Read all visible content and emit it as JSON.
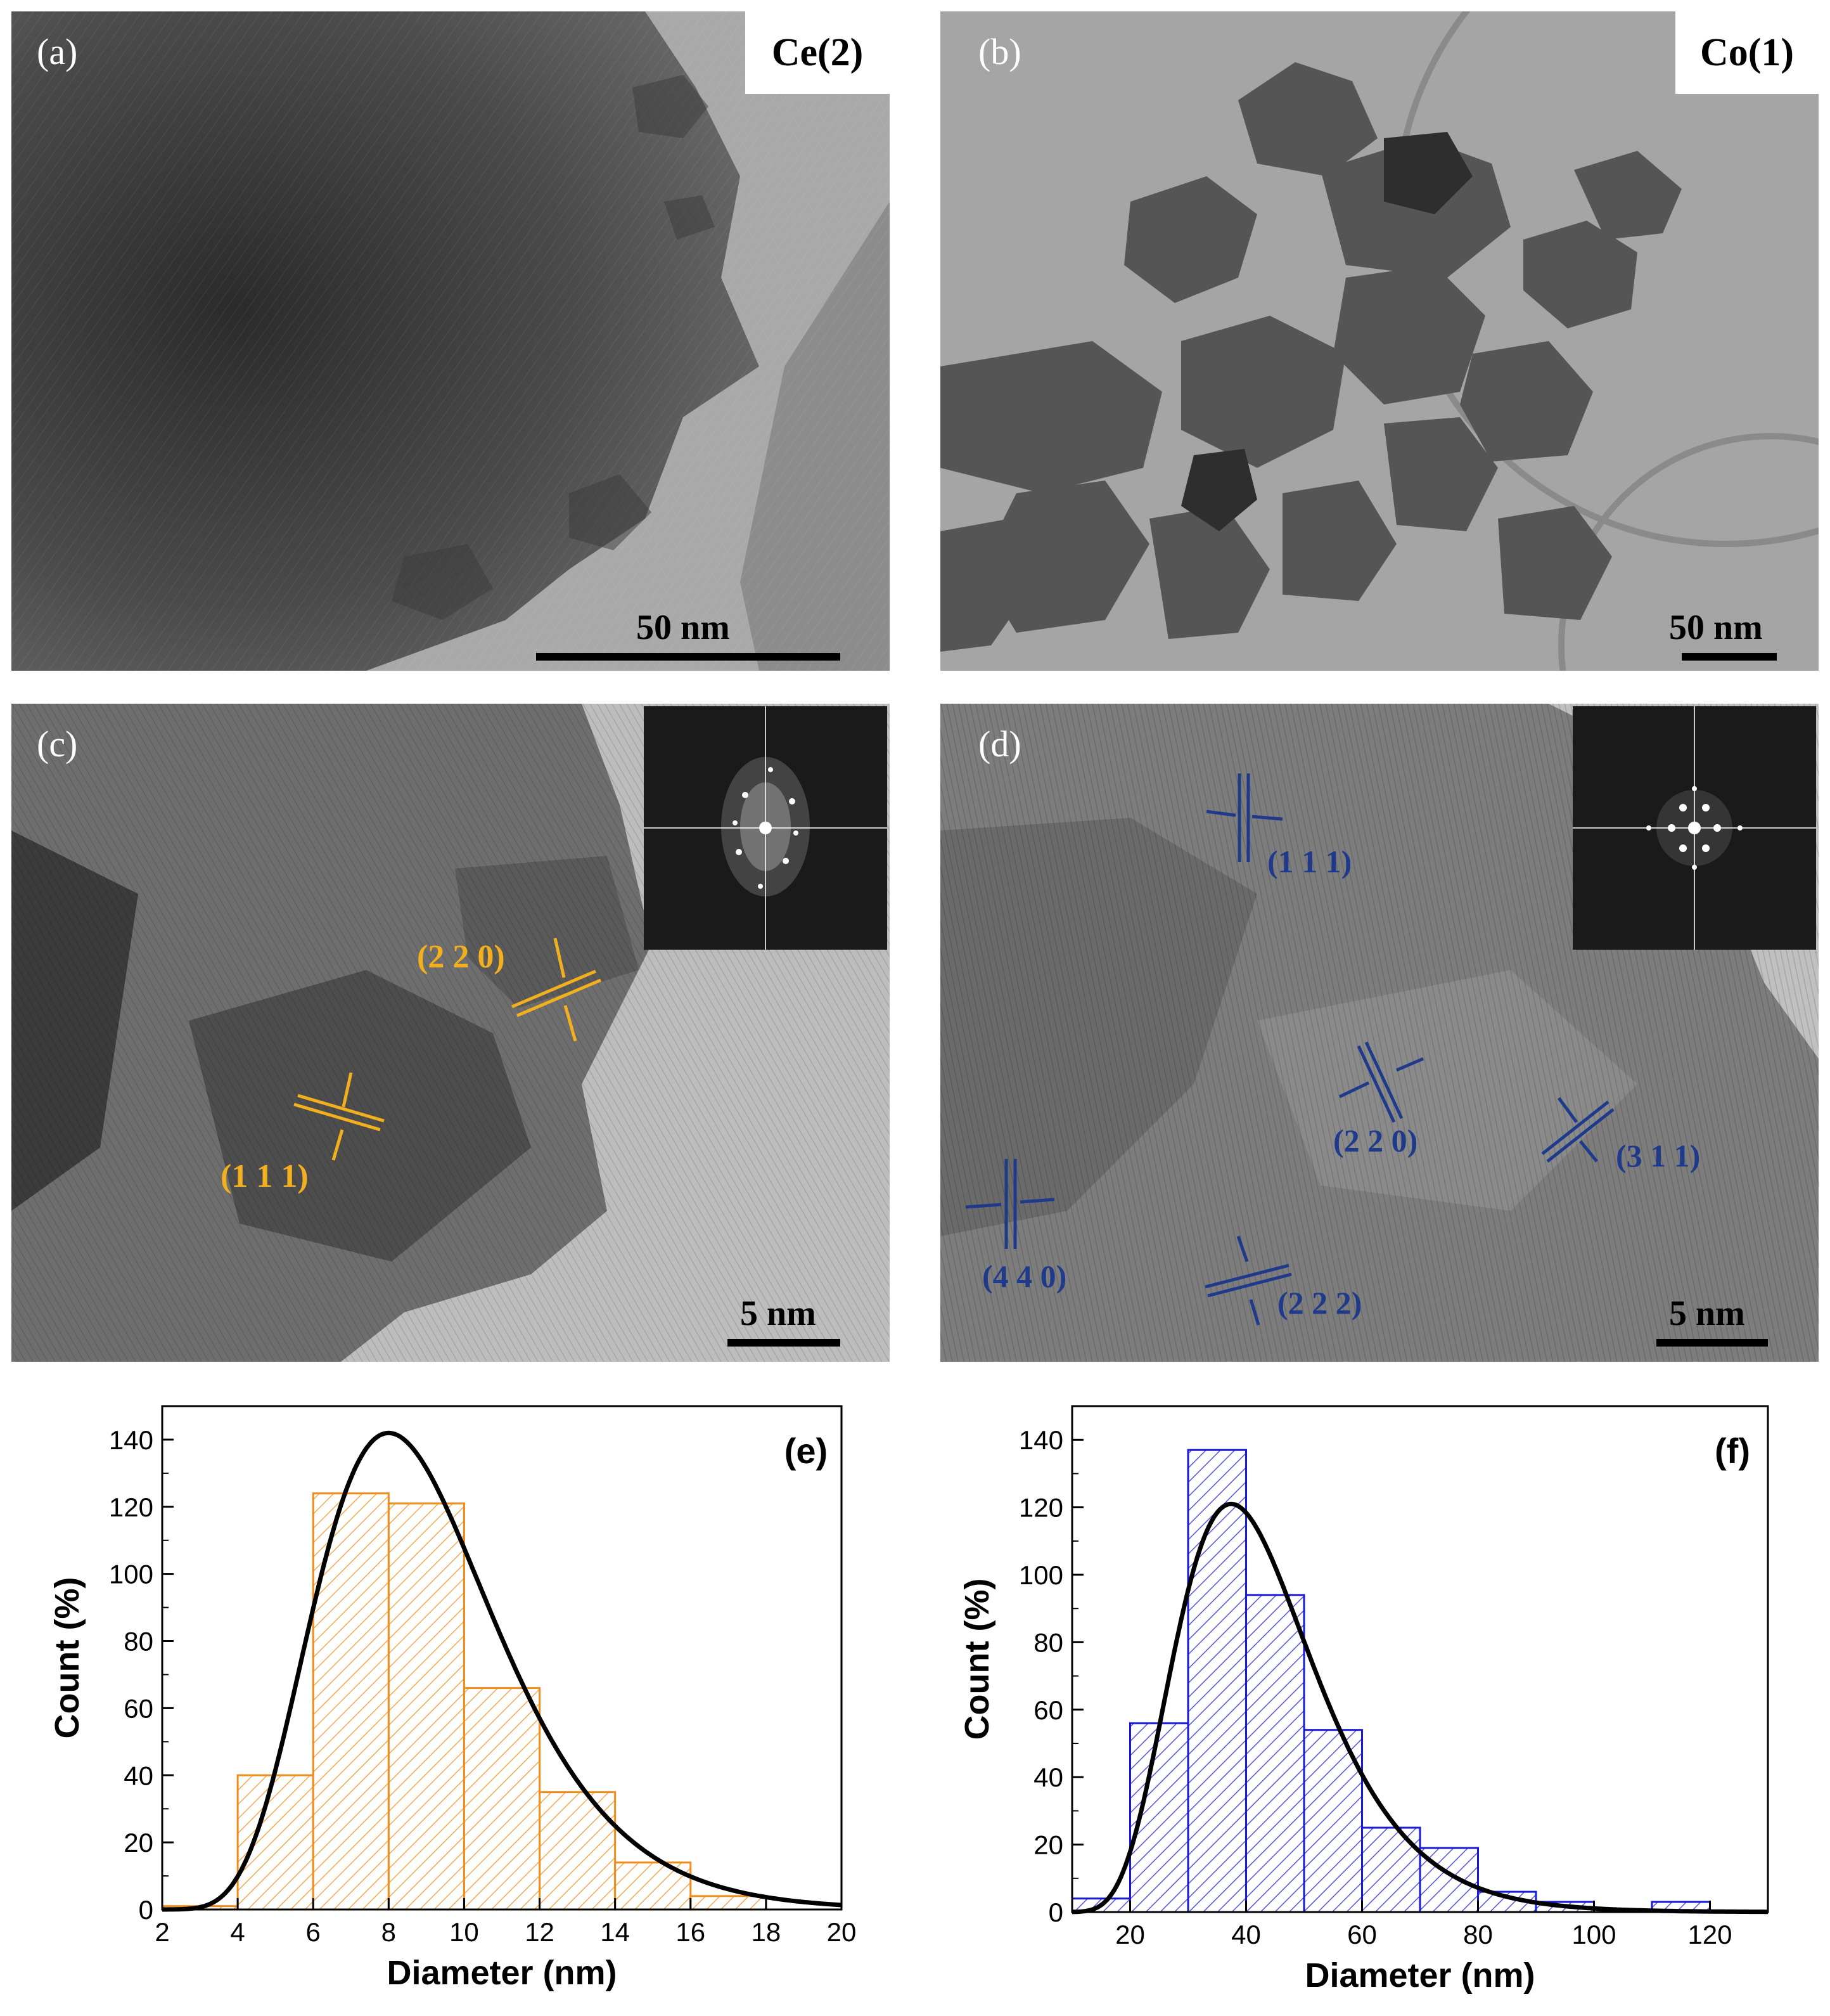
{
  "panels": {
    "a": {
      "label": "(a)",
      "sample": "Ce(2)",
      "scale": "50 nm"
    },
    "b": {
      "label": "(b)",
      "sample": "Co(1)",
      "scale": "50 nm"
    },
    "c": {
      "label": "(c)",
      "scale": "5 nm",
      "planes": [
        "(2 2 0)",
        "(1 1 1)"
      ],
      "plane_color": "#f2b01e"
    },
    "d": {
      "label": "(d)",
      "scale": "5 nm",
      "planes": [
        "(1 1 1)",
        "(2 2 0)",
        "(3 1 1)",
        "(4 4 0)",
        "(2 2 2)"
      ],
      "plane_color": "#1f3a8a"
    }
  },
  "chart_data": [
    {
      "type": "bar",
      "panel_label": "(e)",
      "xlabel": "Diameter (nm)",
      "ylabel": "Count (%)",
      "xlim": [
        2,
        20
      ],
      "ylim": [
        0,
        150
      ],
      "xticks": [
        2,
        4,
        6,
        8,
        10,
        12,
        14,
        16,
        18,
        20
      ],
      "yticks": [
        0,
        20,
        40,
        60,
        80,
        100,
        120,
        140
      ],
      "bin_edges": [
        2,
        4,
        6,
        8,
        10,
        12,
        14,
        16,
        18
      ],
      "values": [
        1,
        40,
        124,
        121,
        66,
        35,
        14,
        4
      ],
      "bar_color": "#f08c1a",
      "fit": {
        "type": "lognormal",
        "peak_x": 8.0,
        "peak_y": 142,
        "color": "#000000"
      }
    },
    {
      "type": "bar",
      "panel_label": "(f)",
      "xlabel": "Diameter (nm)",
      "ylabel": "Count (%)",
      "xlim": [
        10,
        130
      ],
      "ylim": [
        0,
        150
      ],
      "xticks": [
        20,
        40,
        60,
        80,
        100,
        120
      ],
      "yticks": [
        0,
        20,
        40,
        60,
        80,
        100,
        120,
        140
      ],
      "bin_edges": [
        10,
        20,
        30,
        40,
        50,
        60,
        70,
        80,
        90,
        100,
        110,
        120
      ],
      "values": [
        4,
        56,
        137,
        94,
        54,
        25,
        19,
        6,
        3,
        0,
        3
      ],
      "bar_color": "#1a1ad6",
      "fit": {
        "type": "lognormal",
        "peak_x": 37.5,
        "peak_y": 121,
        "color": "#000000"
      }
    }
  ]
}
